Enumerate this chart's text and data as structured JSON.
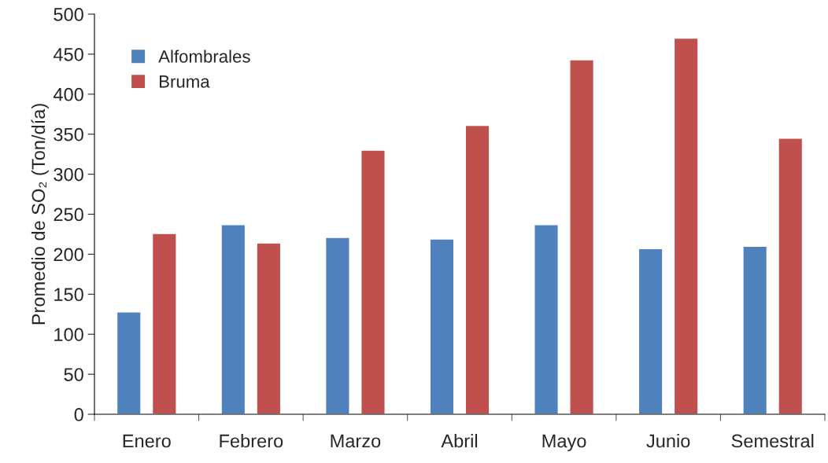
{
  "chart_data": {
    "type": "bar",
    "ylabel": "Promedio de SO₂ (Ton/día)",
    "categories": [
      "Enero",
      "Febrero",
      "Marzo",
      "Abril",
      "Mayo",
      "Junio",
      "Semestral"
    ],
    "series": [
      {
        "name": "Alfombrales",
        "color": "#4f81bd",
        "values": [
          128,
          237,
          221,
          219,
          237,
          207,
          210
        ]
      },
      {
        "name": "Bruma",
        "color": "#c0504d",
        "values": [
          226,
          214,
          330,
          361,
          443,
          470,
          345
        ]
      }
    ],
    "ylim": [
      0,
      500
    ],
    "yticks": [
      0,
      50,
      100,
      150,
      200,
      250,
      300,
      350,
      400,
      450,
      500
    ],
    "grid": false,
    "legend": "top left"
  }
}
